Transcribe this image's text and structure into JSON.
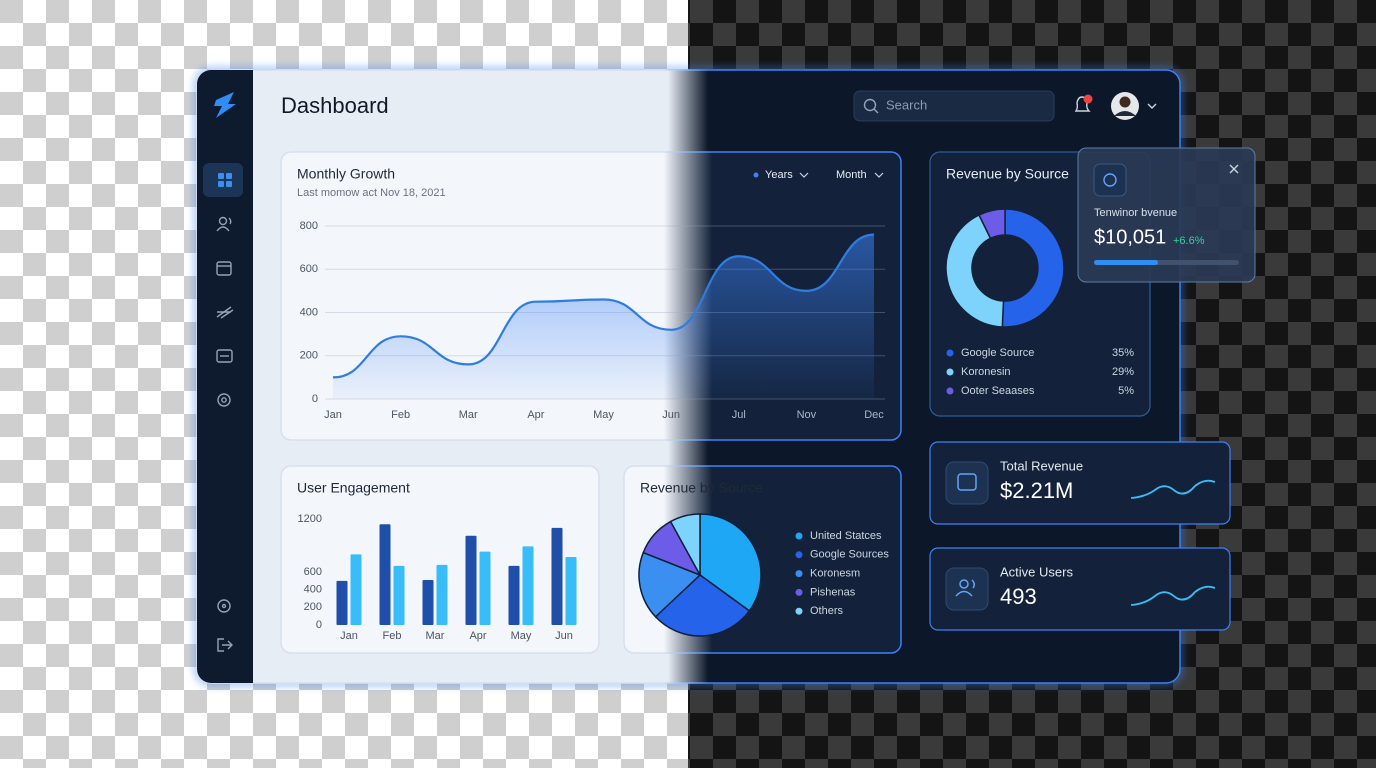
{
  "header": {
    "title": "Dashboard",
    "search_placeholder": "Search"
  },
  "chart_data": [
    {
      "type": "line",
      "title": "Monthly Growth",
      "subtitle": "Last momow act Nov 18, 2021",
      "filters": [
        "Years",
        "Month"
      ],
      "categories": [
        "Jan",
        "Feb",
        "Mar",
        "Apr",
        "May",
        "Jun",
        "Jul",
        "Nov",
        "Dec"
      ],
      "values": [
        100,
        290,
        160,
        450,
        460,
        320,
        660,
        500,
        760
      ],
      "color": "#2f7de1",
      "ylim": [
        0,
        800
      ],
      "yticks": [
        0,
        200,
        400,
        600,
        800
      ],
      "grid": true
    },
    {
      "type": "donut",
      "title": "Revenue by Source",
      "categories": [
        "Google Source",
        "Koronesin",
        "Ooter Seaases"
      ],
      "values": [
        35,
        29,
        5
      ],
      "value_labels": [
        "35%",
        "29%",
        "5%"
      ],
      "colors": [
        "#2563eb",
        "#7dd3fc",
        "#6d5ce7"
      ]
    },
    {
      "type": "bar",
      "title": "User Engagement",
      "categories": [
        "Jan",
        "Feb",
        "Mar",
        "Apr",
        "May",
        "Jun"
      ],
      "series": [
        {
          "color": "#1f4fa8",
          "values": [
            500,
            1140,
            510,
            1010,
            670,
            1100
          ]
        },
        {
          "color": "#38bdf8",
          "values": [
            800,
            670,
            680,
            830,
            890,
            770
          ]
        }
      ],
      "ylim": [
        0,
        1200
      ],
      "yticks": [
        0,
        200,
        400,
        600,
        1200
      ]
    },
    {
      "type": "pie",
      "title": "Revenue by Source",
      "categories": [
        "United Statces",
        "Google Sources",
        "Koronesm",
        "Pishenas",
        "Others"
      ],
      "values": [
        35,
        28,
        18,
        11,
        8
      ],
      "colors": [
        "#1ea7f5",
        "#2563eb",
        "#3b8ff0",
        "#6d5ce7",
        "#7dd3fc"
      ]
    }
  ],
  "revenue_popup": {
    "label": "Tenwinor bvenue",
    "value": "$10,051",
    "change": "+6.6%"
  },
  "stat_cards": [
    {
      "label": "Total Revenue",
      "value": "$2.21M"
    },
    {
      "label": "Active Users",
      "value": "493"
    }
  ]
}
